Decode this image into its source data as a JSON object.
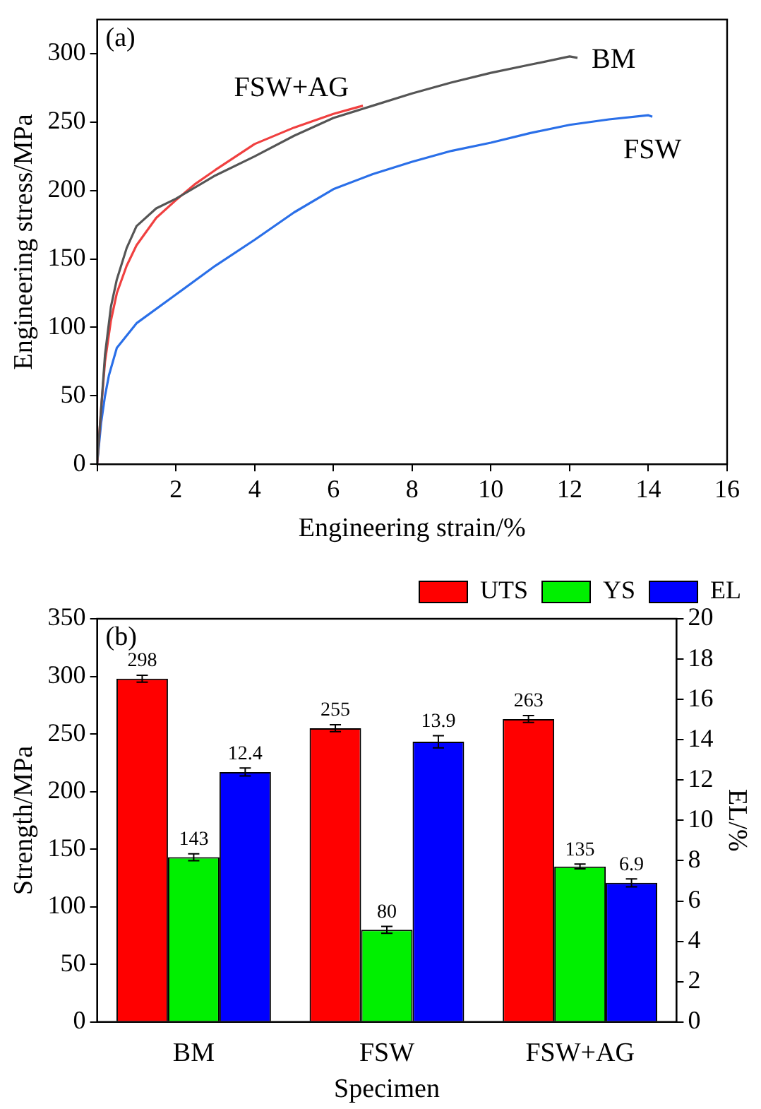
{
  "chart_data": [
    {
      "type": "line",
      "xlabel": "Engineering strain/%",
      "ylabel": "Engineering stress/MPa",
      "annotations": [
        "(a)"
      ],
      "xlim": [
        0,
        16
      ],
      "ylim": [
        0,
        325
      ],
      "xticks": [
        {
          "value": 0,
          "label": null
        },
        2,
        4,
        6,
        8,
        10,
        12,
        14,
        16
      ],
      "yticks": [
        0,
        50,
        100,
        150,
        200,
        250,
        300
      ],
      "series": [
        {
          "name": "BM",
          "color": "#555555",
          "x": [
            0,
            0.1,
            0.2,
            0.35,
            0.5,
            0.75,
            1,
            1.5,
            2,
            3,
            4,
            5,
            6,
            7,
            8,
            9,
            10,
            11,
            12,
            12.2
          ],
          "values": [
            0,
            40,
            80,
            115,
            135,
            158,
            174,
            187,
            194,
            211,
            225,
            240,
            253,
            262,
            271,
            279,
            286,
            292,
            298,
            297
          ]
        },
        {
          "name": "FSW+AG",
          "color": "#f04040",
          "x": [
            0,
            0.1,
            0.2,
            0.35,
            0.5,
            0.75,
            1,
            1.5,
            2,
            2.5,
            3,
            4,
            5,
            6,
            6.75
          ],
          "values": [
            0,
            40,
            75,
            105,
            125,
            145,
            160,
            180,
            193,
            205,
            215,
            234,
            246,
            256,
            262
          ]
        },
        {
          "name": "FSW",
          "color": "#2a6fe8",
          "x": [
            0,
            0.1,
            0.2,
            0.3,
            0.5,
            1,
            2,
            3,
            4,
            5,
            6,
            7,
            8,
            9,
            10,
            11,
            12,
            13,
            14,
            14.1
          ],
          "values": [
            0,
            30,
            50,
            65,
            85,
            103,
            124,
            145,
            164,
            184,
            201,
            212,
            221,
            229,
            235,
            242,
            248,
            252,
            255,
            254
          ]
        }
      ]
    },
    {
      "type": "bar",
      "xlabel": "Specimen",
      "ylabel": "Strength/MPa",
      "y2label": "EL/%",
      "annotations": [
        "(b)"
      ],
      "categories": [
        "BM",
        "FSW",
        "FSW+AG"
      ],
      "ylim": [
        0,
        350
      ],
      "yticks": [
        0,
        50,
        100,
        150,
        200,
        250,
        300,
        350
      ],
      "y2lim": [
        0,
        20
      ],
      "y2ticks": [
        0,
        2,
        4,
        6,
        8,
        10,
        12,
        14,
        16,
        18,
        20
      ],
      "legend": "top right",
      "data_labels": true,
      "series": [
        {
          "name": "UTS",
          "color": "#ff0000",
          "values": [
            298,
            255,
            263
          ],
          "errors": [
            3,
            3,
            3
          ]
        },
        {
          "name": "YS",
          "color": "#00f000",
          "values": [
            143,
            80,
            135
          ],
          "errors": [
            3,
            3,
            2
          ]
        },
        {
          "name": "EL",
          "color": "#0000ff",
          "axis": "y2",
          "values": [
            12.4,
            13.9,
            6.9
          ],
          "errors": [
            0.2,
            0.3,
            0.2
          ]
        }
      ]
    }
  ]
}
